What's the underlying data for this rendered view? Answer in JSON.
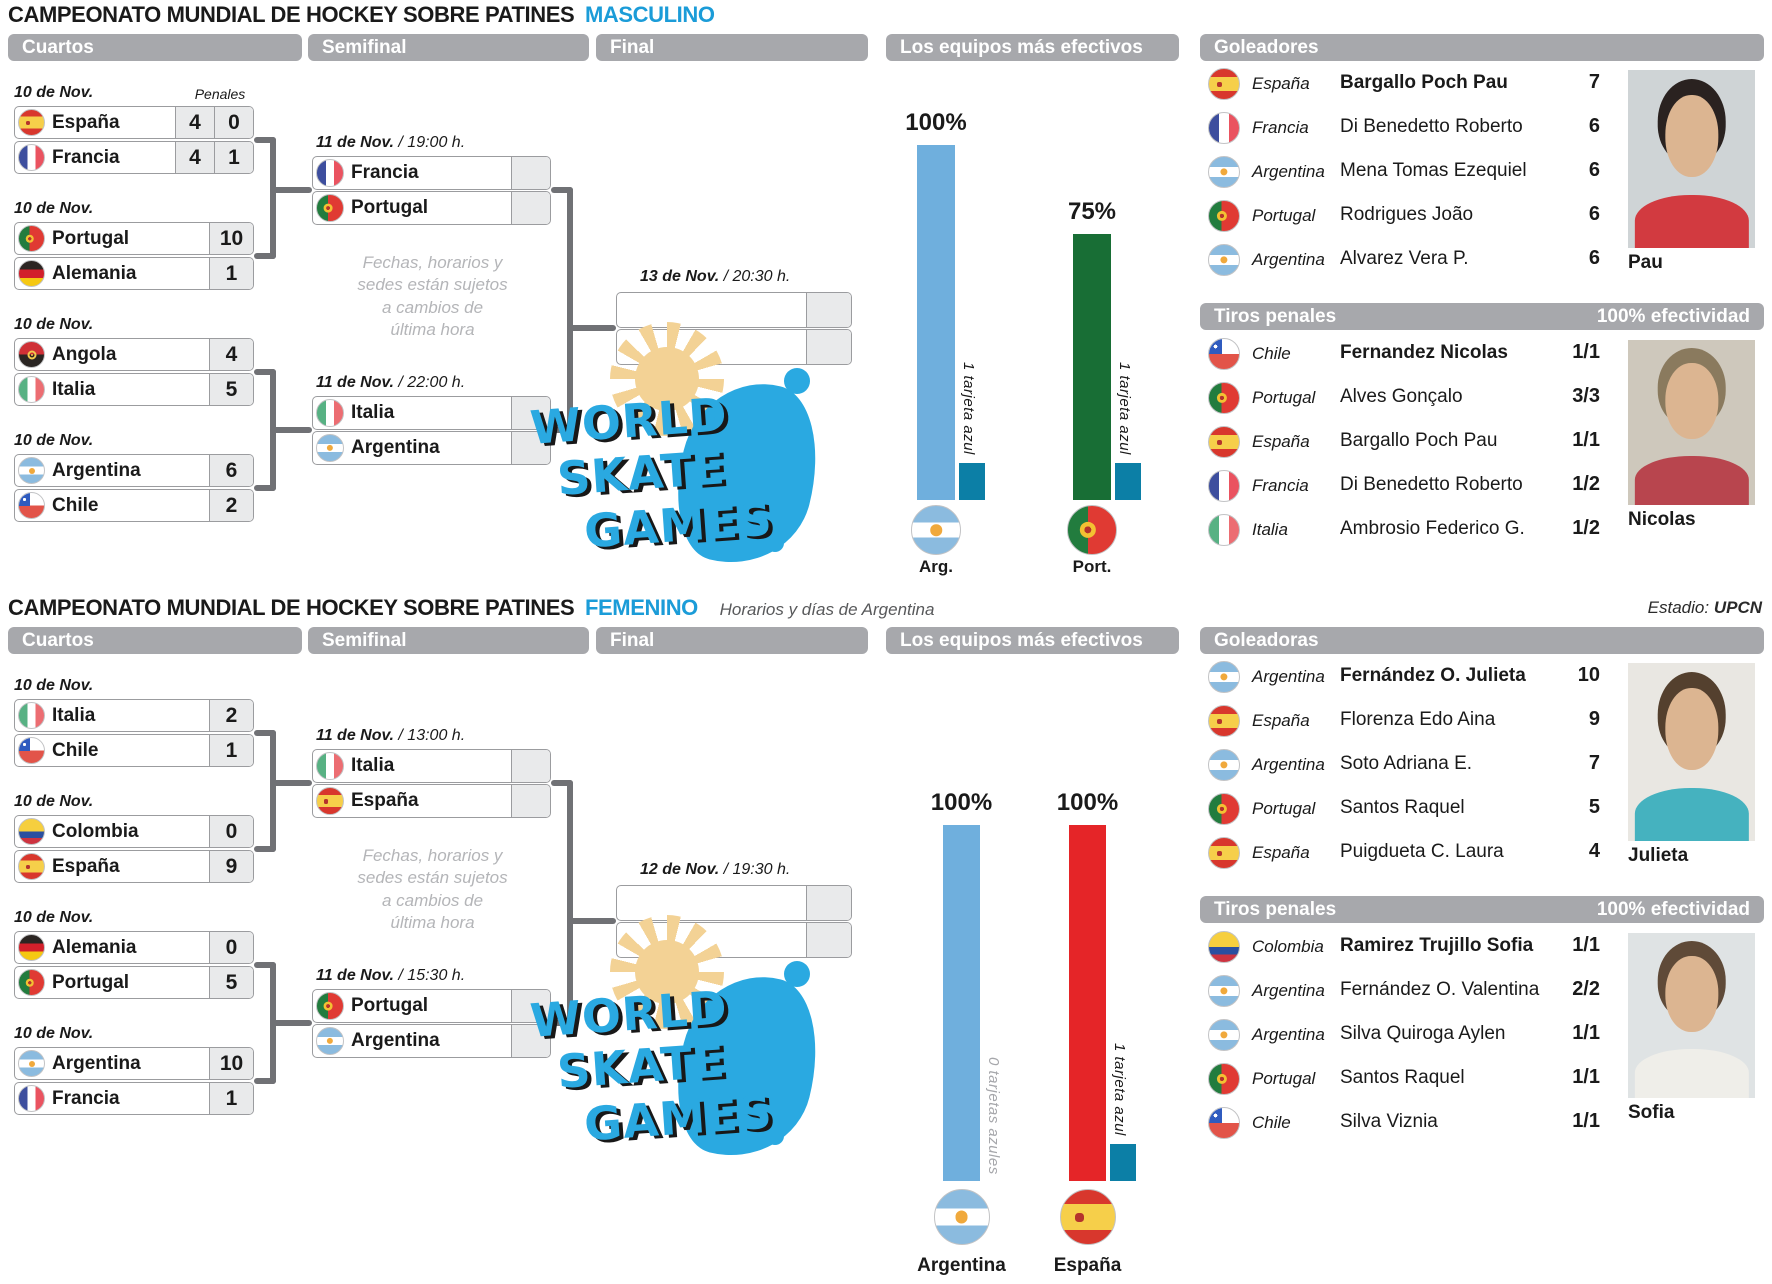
{
  "accent_color": "#1b9cd8",
  "logo": {
    "lines": [
      "WORLD",
      "SKATE",
      "GAMES"
    ]
  },
  "chart_data": [
    {
      "type": "bar",
      "title": "Los equipos más efectivos",
      "section": "Masculino",
      "categories": [
        "Arg.",
        "Port."
      ],
      "values": [
        100,
        75
      ],
      "unit": "%",
      "bar_colors": [
        "#6fafdd",
        "#186e35"
      ],
      "annotations": [
        "1 tarjeta azul",
        "1 tarjeta azul"
      ],
      "blue_cards": [
        1,
        1
      ],
      "ylim": [
        0,
        100
      ],
      "grid": false,
      "legend": "none"
    },
    {
      "type": "bar",
      "title": "Los equipos más efectivos",
      "section": "Femenino",
      "categories": [
        "Argentina",
        "España"
      ],
      "values": [
        100,
        100
      ],
      "unit": "%",
      "bar_colors": [
        "#6fafdd",
        "#e52528"
      ],
      "annotations": [
        "0 tarjetas azules",
        "1 tarjeta azul"
      ],
      "blue_cards": [
        0,
        1
      ],
      "ylim": [
        0,
        100
      ],
      "grid": false,
      "legend": "none"
    }
  ],
  "sections": [
    {
      "id": "masculino",
      "title": "CAMPEONATO MUNDIAL DE HOCKEY SOBRE PATINES",
      "title_highlight": "MASCULINO",
      "headers": {
        "cuartos": "Cuartos",
        "semifinal": "Semifinal",
        "final": "Final",
        "chart": "Los equipos más efectivos",
        "scorers": "Goleadores"
      },
      "penales_label": "Penales",
      "quarters": [
        {
          "date": "10 de Nov.",
          "teams": [
            {
              "country": "España",
              "score": "4",
              "penales": "0"
            },
            {
              "country": "Francia",
              "score": "4",
              "penales": "1"
            }
          ]
        },
        {
          "date": "10 de Nov.",
          "teams": [
            {
              "country": "Portugal",
              "score": "10"
            },
            {
              "country": "Alemania",
              "score": "1"
            }
          ]
        },
        {
          "date": "10 de Nov.",
          "teams": [
            {
              "country": "Angola",
              "score": "4"
            },
            {
              "country": "Italia",
              "score": "5"
            }
          ]
        },
        {
          "date": "10 de Nov.",
          "teams": [
            {
              "country": "Argentina",
              "score": "6"
            },
            {
              "country": "Chile",
              "score": "2"
            }
          ]
        }
      ],
      "semifinals": [
        {
          "date_bold": "11 de Nov.",
          "date_rest": "/ 19:00 h.",
          "teams": [
            "Francia",
            "Portugal"
          ]
        },
        {
          "date_bold": "11 de Nov.",
          "date_rest": "/ 22:00 h.",
          "teams": [
            "Italia",
            "Argentina"
          ]
        }
      ],
      "note_lines": [
        "Fechas, horarios y",
        "sedes están sujetos",
        "a cambios de",
        "última hora"
      ],
      "final": {
        "date_bold": "13 de Nov.",
        "date_rest": "/ 20:30 h."
      },
      "chart": {
        "bars": [
          {
            "label": "Arg.",
            "pct": 100,
            "color": "#6fafdd",
            "flag": "Argentina",
            "note": "1 tarjeta azul",
            "cards": 1,
            "note_muted": false
          },
          {
            "label": "Port.",
            "pct": 75,
            "color": "#186e35",
            "flag": "Portugal",
            "note": "1 tarjeta azul",
            "cards": 1,
            "note_muted": false
          }
        ]
      },
      "scorers": {
        "photo_caption": "Pau",
        "rows": [
          {
            "country": "España",
            "name": "Bargallo Poch Pau",
            "value": "7",
            "bold": true
          },
          {
            "country": "Francia",
            "name": "Di Benedetto Roberto",
            "value": "6",
            "bold": false
          },
          {
            "country": "Argentina",
            "name": "Mena Tomas Ezequiel",
            "value": "6",
            "bold": false
          },
          {
            "country": "Portugal",
            "name": "Rodrigues João",
            "value": "6",
            "bold": false
          },
          {
            "country": "Argentina",
            "name": "Alvarez Vera P.",
            "value": "6",
            "bold": false
          }
        ]
      },
      "penalties": {
        "header": "Tiros penales",
        "header_right": "100% efectividad",
        "photo_caption": "Nicolas",
        "rows": [
          {
            "country": "Chile",
            "name": "Fernandez Nicolas",
            "value": "1/1",
            "bold": true
          },
          {
            "country": "Portugal",
            "name": "Alves Gonçalo",
            "value": "3/3",
            "bold": false
          },
          {
            "country": "España",
            "name": "Bargallo Poch Pau",
            "value": "1/1",
            "bold": false
          },
          {
            "country": "Francia",
            "name": "Di Benedetto Roberto",
            "value": "1/2",
            "bold": false
          },
          {
            "country": "Italia",
            "name": "Ambrosio Federico G.",
            "value": "1/2",
            "bold": false
          }
        ]
      }
    },
    {
      "id": "femenino",
      "title": "CAMPEONATO MUNDIAL DE HOCKEY SOBRE PATINES",
      "title_highlight": "FEMENINO",
      "subtitle": "Horarios y días de Argentina",
      "stadium_label": "Estadio:",
      "stadium_value": "UPCN",
      "headers": {
        "cuartos": "Cuartos",
        "semifinal": "Semifinal",
        "final": "Final",
        "chart": "Los equipos más efectivos",
        "scorers": "Goleadoras"
      },
      "quarters": [
        {
          "date": "10 de Nov.",
          "teams": [
            {
              "country": "Italia",
              "score": "2"
            },
            {
              "country": "Chile",
              "score": "1"
            }
          ]
        },
        {
          "date": "10 de Nov.",
          "teams": [
            {
              "country": "Colombia",
              "score": "0"
            },
            {
              "country": "España",
              "score": "9"
            }
          ]
        },
        {
          "date": "10 de Nov.",
          "teams": [
            {
              "country": "Alemania",
              "score": "0"
            },
            {
              "country": "Portugal",
              "score": "5"
            }
          ]
        },
        {
          "date": "10 de Nov.",
          "teams": [
            {
              "country": "Argentina",
              "score": "10"
            },
            {
              "country": "Francia",
              "score": "1"
            }
          ]
        }
      ],
      "semifinals": [
        {
          "date_bold": "11 de Nov.",
          "date_rest": "/ 13:00 h.",
          "teams": [
            "Italia",
            "España"
          ]
        },
        {
          "date_bold": "11 de Nov.",
          "date_rest": "/ 15:30 h.",
          "teams": [
            "Portugal",
            "Argentina"
          ]
        }
      ],
      "note_lines": [
        "Fechas, horarios y",
        "sedes están sujetos",
        "a cambios de",
        "última hora"
      ],
      "final": {
        "date_bold": "12 de Nov.",
        "date_rest": "/ 19:30 h."
      },
      "chart": {
        "bars": [
          {
            "label": "Argentina",
            "pct": 100,
            "color": "#6fafdd",
            "flag": "Argentina",
            "note": "0 tarjetas azules",
            "cards": 0,
            "note_muted": true
          },
          {
            "label": "España",
            "pct": 100,
            "color": "#e52528",
            "flag": "España",
            "note": "1 tarjeta azul",
            "cards": 1,
            "note_muted": false
          }
        ]
      },
      "scorers": {
        "photo_caption": "Julieta",
        "rows": [
          {
            "country": "Argentina",
            "name": "Fernández O. Julieta",
            "value": "10",
            "bold": true
          },
          {
            "country": "España",
            "name": "Florenza Edo Aina",
            "value": "9",
            "bold": false
          },
          {
            "country": "Argentina",
            "name": "Soto Adriana E.",
            "value": "7",
            "bold": false
          },
          {
            "country": "Portugal",
            "name": "Santos Raquel",
            "value": "5",
            "bold": false
          },
          {
            "country": "España",
            "name": "Puigdueta C. Laura",
            "value": "4",
            "bold": false
          }
        ]
      },
      "penalties": {
        "header": "Tiros penales",
        "header_right": "100% efectividad",
        "photo_caption": "Sofia",
        "rows": [
          {
            "country": "Colombia",
            "name": "Ramirez Trujillo Sofia",
            "value": "1/1",
            "bold": true
          },
          {
            "country": "Argentina",
            "name": "Fernández O. Valentina",
            "value": "2/2",
            "bold": false
          },
          {
            "country": "Argentina",
            "name": "Silva Quiroga Aylen",
            "value": "1/1",
            "bold": false
          },
          {
            "country": "Portugal",
            "name": "Santos Raquel",
            "value": "1/1",
            "bold": false
          },
          {
            "country": "Chile",
            "name": "Silva Viznia",
            "value": "1/1",
            "bold": false
          }
        ]
      }
    }
  ]
}
